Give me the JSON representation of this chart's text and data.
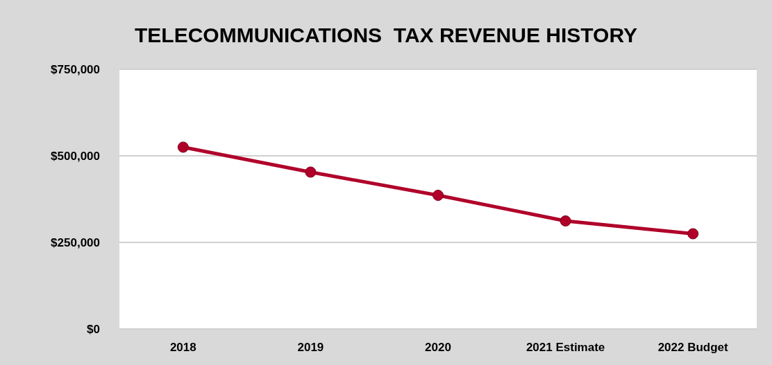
{
  "chart_data": {
    "type": "line",
    "title": "TELECOMMUNICATIONS  TAX REVENUE HISTORY",
    "categories": [
      "2018",
      "2019",
      "2020",
      "2021 Estimate",
      "2022 Budget"
    ],
    "series": [
      {
        "color": "#b0002a",
        "values": [
          525000,
          453000,
          386000,
          312000,
          275000
        ]
      }
    ],
    "ylim": [
      0,
      750000
    ],
    "yticks": [
      {
        "value": 0,
        "label": "$0"
      },
      {
        "value": 250000,
        "label": "$250,000"
      },
      {
        "value": 500000,
        "label": "$500,000"
      },
      {
        "value": 750000,
        "label": "$750,000"
      }
    ],
    "grid": "y",
    "marker": "circle",
    "line_style": "solid"
  }
}
